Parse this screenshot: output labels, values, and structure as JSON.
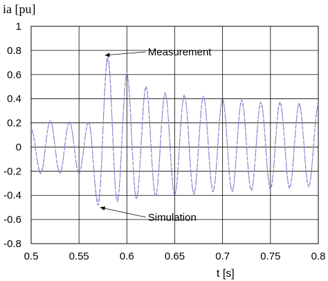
{
  "chart_data": {
    "type": "line",
    "ylabel": "ia [pu]",
    "xlabel": "t [s]",
    "xlim": [
      0.5,
      0.8
    ],
    "ylim": [
      -0.8,
      1.0
    ],
    "xticks": [
      0.5,
      0.55,
      0.6,
      0.65,
      0.7,
      0.75,
      0.8
    ],
    "xtick_labels": [
      "0.5",
      "0.55",
      "0.6",
      "0.65",
      "0.7",
      "0.75",
      "0.8"
    ],
    "yticks": [
      1.0,
      0.8,
      0.6,
      0.4,
      0.2,
      0.0,
      -0.2,
      -0.4,
      -0.6,
      -0.8
    ],
    "ytick_labels": [
      "1",
      "0.8",
      "0.6",
      "0.4",
      "0.2",
      "0",
      "-0.2",
      "-0.4",
      "-0.6",
      "-0.8"
    ],
    "grid": true,
    "series_colors": [
      "#7a7ac8",
      "#8c8cd8"
    ],
    "series": [
      {
        "style": "dashed",
        "x": [
          0.5,
          0.51,
          0.52,
          0.53,
          0.54,
          0.55,
          0.56,
          0.57,
          0.58,
          0.59,
          0.6,
          0.61,
          0.62,
          0.63,
          0.64,
          0.65,
          0.66,
          0.67,
          0.68,
          0.69,
          0.7,
          0.71,
          0.72,
          0.73,
          0.74,
          0.75,
          0.76,
          0.77,
          0.78,
          0.79,
          0.8
        ],
        "y": [
          0.15,
          -0.22,
          0.22,
          -0.22,
          0.21,
          -0.22,
          0.21,
          -0.48,
          0.75,
          -0.45,
          0.61,
          -0.43,
          0.5,
          -0.41,
          0.45,
          -0.4,
          0.43,
          -0.39,
          0.42,
          -0.37,
          0.4,
          -0.37,
          0.39,
          -0.36,
          0.37,
          -0.35,
          0.37,
          -0.34,
          0.36,
          -0.33,
          0.35
        ]
      },
      {
        "style": "dashdot",
        "x": [
          0.5,
          0.51,
          0.52,
          0.53,
          0.54,
          0.55,
          0.56,
          0.57,
          0.58,
          0.59,
          0.6,
          0.61,
          0.62,
          0.63,
          0.64,
          0.65,
          0.66,
          0.67,
          0.68,
          0.69,
          0.7,
          0.71,
          0.72,
          0.73,
          0.74,
          0.75,
          0.76,
          0.77,
          0.78,
          0.79,
          0.8
        ],
        "y": [
          0.14,
          -0.21,
          0.22,
          -0.21,
          0.21,
          -0.21,
          0.2,
          -0.46,
          0.72,
          -0.44,
          0.6,
          -0.42,
          0.49,
          -0.4,
          0.44,
          -0.39,
          0.42,
          -0.38,
          0.41,
          -0.36,
          0.39,
          -0.36,
          0.38,
          -0.35,
          0.36,
          -0.34,
          0.36,
          -0.33,
          0.35,
          -0.32,
          0.34
        ]
      }
    ],
    "annotations": [
      {
        "text": "Measurement",
        "x": 0.577,
        "y": 0.76,
        "text_x": 0.622,
        "text_y": 0.76
      },
      {
        "text": "Simulation",
        "x": 0.572,
        "y": -0.5,
        "text_x": 0.622,
        "text_y": -0.61
      }
    ]
  }
}
